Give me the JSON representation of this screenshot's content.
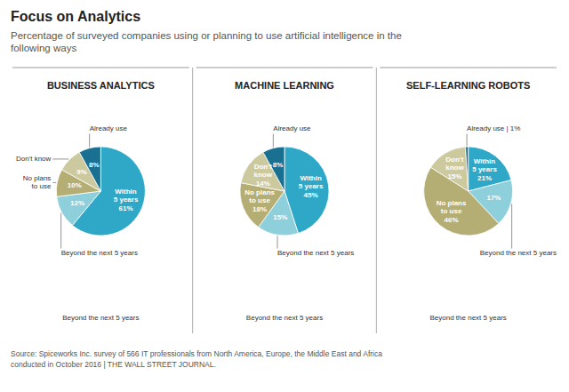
{
  "title": "Focus on Analytics",
  "subtitle": "Percentage of surveyed companies using or planning to use artificial intelligence in the\nfollowing ways",
  "footer": "Source: Spiceworks Inc. survey of 566 IT professionals from North America, Europe, the Middle East and Africa\nconducted in October 2016 | THE WALL STREET JOURNAL.",
  "chart_data": [
    {
      "type": "pie",
      "title": "BUSINESS ANALYTICS",
      "categories": [
        null,
        "Beyond the next 5 years",
        "No plans\nto use",
        "Don't know",
        "Already use"
      ],
      "values": [
        61,
        12,
        10,
        9,
        8
      ],
      "colors": [
        "#2fa8c8",
        "#8ecfdc",
        "#b5ae74",
        "#cdc99e",
        "#1a7090"
      ],
      "value_labels": [
        "Within\n5 years\n61%",
        "12%",
        "10%",
        "9%",
        "8%"
      ],
      "annotations": [
        "Beyond the next 5 years"
      ]
    },
    {
      "type": "pie",
      "title": "MACHINE LEARNING",
      "categories": [
        null,
        "Beyond the next 5 years",
        null,
        null,
        "Already use"
      ],
      "values": [
        45,
        15,
        18,
        14,
        8
      ],
      "colors": [
        "#2fa8c8",
        "#8ecfdc",
        "#b5ae74",
        "#cdc99e",
        "#1a7090"
      ],
      "value_labels": [
        "Within\n5 years\n45%",
        "15%",
        "No plans\nto use\n18%",
        "Don't\nknow\n14%",
        "8%"
      ],
      "annotations": [
        "Beyond the next 5 years"
      ]
    },
    {
      "type": "pie",
      "title": "SELF-LEARNING ROBOTS",
      "categories": [
        null,
        "Beyond the next 5 years",
        null,
        null,
        "Already use | 1%"
      ],
      "values": [
        21,
        17,
        46,
        15,
        1
      ],
      "colors": [
        "#2fa8c8",
        "#8ecfdc",
        "#b5ae74",
        "#cdc99e",
        "#1a7090"
      ],
      "value_labels": [
        "Within\n5 years\n21%",
        "17%",
        "No plans\nto use\n46%",
        "Don't\nknow\n15%",
        null
      ],
      "annotations": [
        "Beyond the next 5 years"
      ]
    }
  ]
}
